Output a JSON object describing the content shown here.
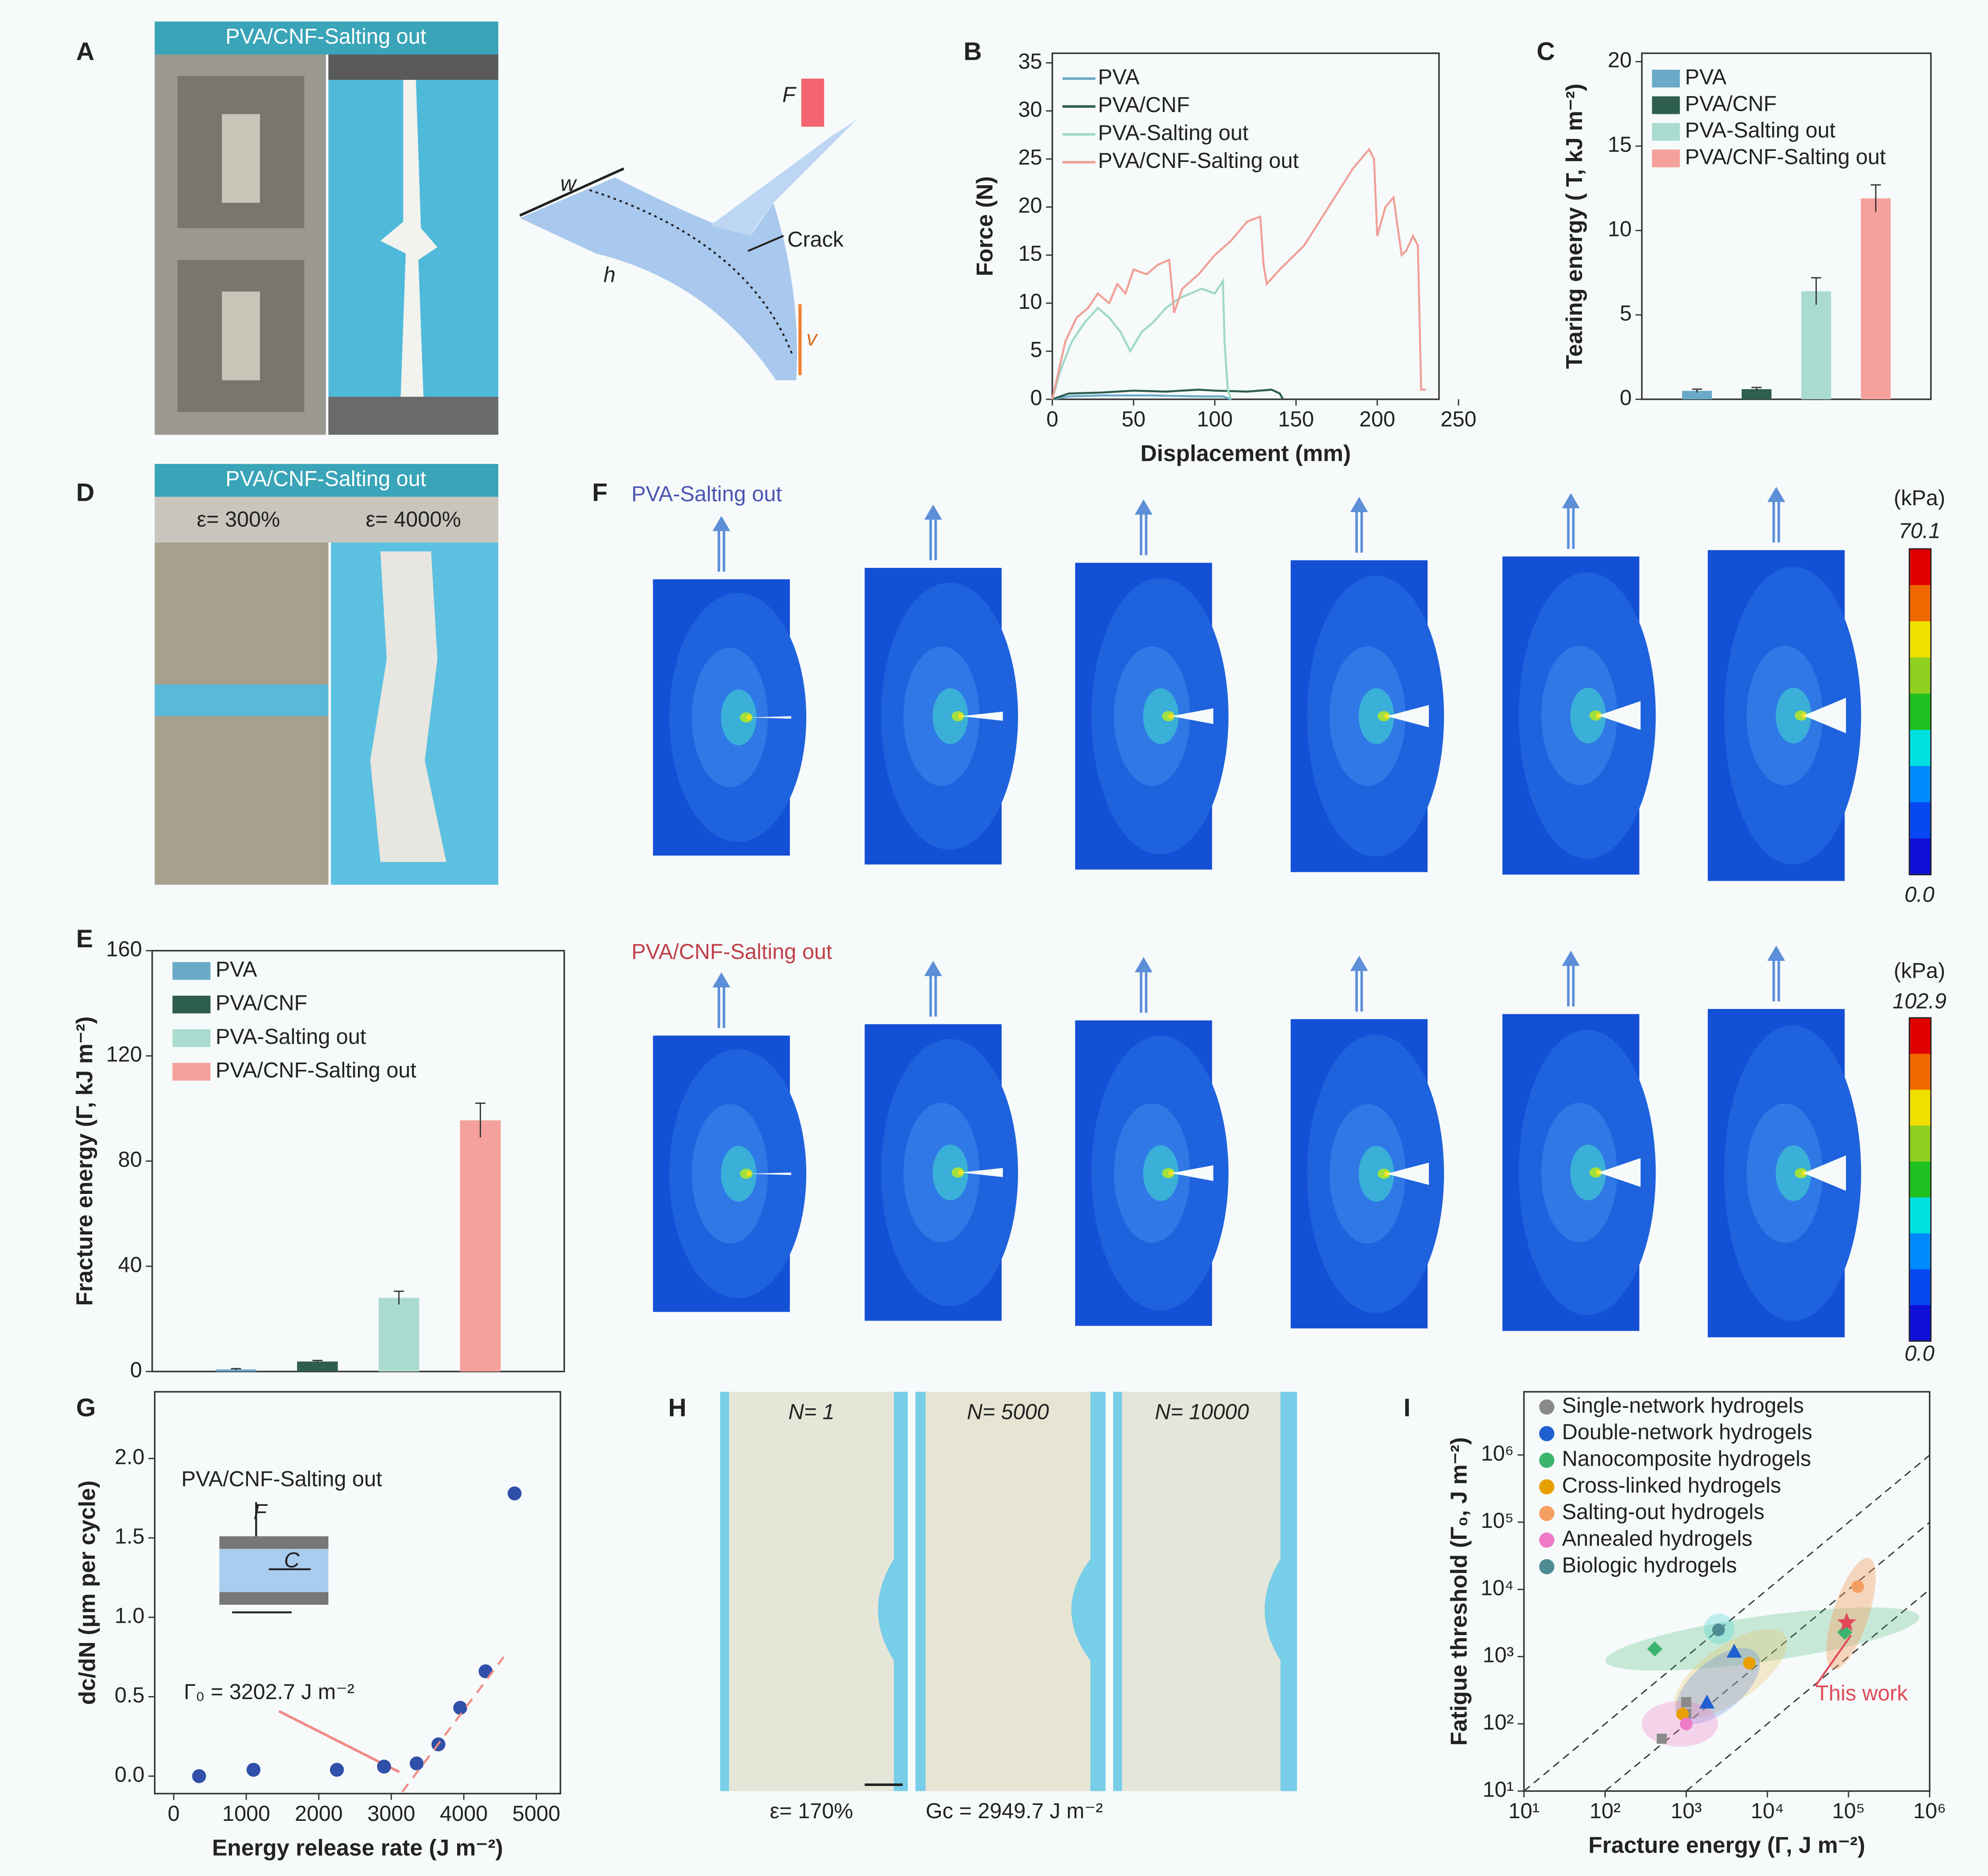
{
  "panels": {
    "A": {
      "label": "A",
      "title": "PVA/CNF-Salting out",
      "annotations": [
        "w",
        "h",
        "F",
        "Crack",
        "v"
      ]
    },
    "D": {
      "label": "D",
      "title": "PVA/CNF-Salting out",
      "captions": [
        "ε= 300%",
        "ε= 4000%"
      ]
    },
    "F": {
      "label": "F",
      "rows": [
        {
          "title": "PVA-Salting out",
          "unit": "(kPa)",
          "max": "70.1",
          "min": "0.0"
        },
        {
          "title": "PVA/CNF-Salting out",
          "unit": "(kPa)",
          "max": "102.9",
          "min": "0.0"
        }
      ]
    },
    "H": {
      "label": "H",
      "captions": [
        "N= 1",
        "N= 5000",
        "N= 10000"
      ],
      "notes": [
        "ε= 170%",
        "Gc = 2949.7 J m⁻²"
      ]
    }
  },
  "chart_data": [
    {
      "type": "line",
      "panel": "B",
      "xlabel": "Displacement (mm)",
      "ylabel": "Force (N)",
      "xlim": [
        0,
        238
      ],
      "ylim": [
        0,
        36
      ],
      "xticks": [
        0,
        50,
        100,
        150,
        200,
        250
      ],
      "yticks": [
        0,
        5,
        10,
        15,
        20,
        25,
        30,
        35
      ],
      "legend": "upper left",
      "series": [
        {
          "name": "PVA",
          "color": "#6aaac8",
          "x": [
            0,
            10,
            30,
            60,
            90,
            105,
            110
          ],
          "y": [
            0,
            0.3,
            0.4,
            0.4,
            0.3,
            0.3,
            0
          ]
        },
        {
          "name": "PVA/CNF",
          "color": "#2e5e4e",
          "x": [
            0,
            10,
            30,
            50,
            70,
            90,
            100,
            120,
            135,
            140,
            142
          ],
          "y": [
            0,
            0.6,
            0.7,
            0.9,
            0.8,
            1.0,
            0.9,
            0.8,
            1.0,
            0.6,
            0
          ]
        },
        {
          "name": "PVA-Salting out",
          "color": "#9fd8c8",
          "x": [
            0,
            5,
            12,
            20,
            28,
            35,
            42,
            48,
            55,
            62,
            70,
            78,
            85,
            92,
            100,
            105,
            106,
            108,
            110
          ],
          "y": [
            0,
            3,
            6,
            8,
            9.5,
            8.5,
            7,
            5,
            7,
            8,
            9.5,
            10.5,
            11,
            11.5,
            11,
            12.3,
            6,
            1,
            0
          ]
        },
        {
          "name": "PVA/CNF-Salting out",
          "color": "#f0a098",
          "x": [
            0,
            8,
            15,
            22,
            28,
            35,
            40,
            45,
            50,
            58,
            65,
            72,
            75,
            80,
            90,
            100,
            110,
            120,
            128,
            130,
            132,
            140,
            155,
            170,
            185,
            195,
            198,
            200,
            205,
            210,
            215,
            218,
            222,
            225,
            227,
            228,
            230
          ],
          "y": [
            0,
            6,
            8.5,
            9.5,
            11,
            10,
            12,
            11,
            13.5,
            13,
            14,
            14.5,
            9,
            11.5,
            13,
            15,
            16.5,
            18.5,
            19,
            14,
            12,
            13.5,
            16,
            20,
            24,
            26,
            25,
            17,
            20,
            21,
            15,
            15.5,
            17,
            16,
            1,
            1,
            1
          ]
        }
      ]
    },
    {
      "type": "bar",
      "panel": "C",
      "ylabel": "Tearing energy ( T, kJ m⁻²)",
      "ylim": [
        0,
        20.5
      ],
      "yticks": [
        0,
        5,
        10,
        15,
        20
      ],
      "legend": "upper left",
      "series": [
        {
          "name": "PVA",
          "color": "#6aaac8",
          "values": [
            0.5
          ],
          "errors": [
            0.1
          ]
        },
        {
          "name": "PVA/CNF",
          "color": "#2e5e4e",
          "values": [
            0.6
          ],
          "errors": [
            0.1
          ]
        },
        {
          "name": "PVA-Salting out",
          "color": "#a9dccf",
          "values": [
            6.4
          ],
          "errors": [
            0.8
          ]
        },
        {
          "name": "PVA/CNF-Salting out",
          "color": "#f4a09c",
          "values": [
            11.9
          ],
          "errors": [
            0.8
          ]
        }
      ]
    },
    {
      "type": "bar",
      "panel": "E",
      "ylabel": "Fracture energy (Γ, kJ m⁻²)",
      "ylim": [
        0,
        160
      ],
      "yticks": [
        0,
        40,
        80,
        120,
        160
      ],
      "legend": "upper left",
      "series": [
        {
          "name": "PVA",
          "color": "#6aaac8",
          "values": [
            0.8
          ],
          "errors": [
            0.3
          ]
        },
        {
          "name": "PVA/CNF",
          "color": "#2e5e4e",
          "values": [
            3.8
          ],
          "errors": [
            0.4
          ]
        },
        {
          "name": "PVA-Salting out",
          "color": "#a9dccf",
          "values": [
            28
          ],
          "errors": [
            2.5
          ]
        },
        {
          "name": "PVA/CNF-Salting out",
          "color": "#f4a09c",
          "values": [
            95.5
          ],
          "errors": [
            6.5
          ]
        }
      ]
    },
    {
      "type": "scatter",
      "panel": "G",
      "xlabel": "Energy release rate (J m⁻²)",
      "ylabel": "dc/dN (μm per cycle)",
      "xlim": [
        -262,
        5332
      ],
      "ylim": [
        -0.11,
        2.42
      ],
      "xticks": [
        0,
        1000,
        2000,
        3000,
        4000,
        5000
      ],
      "yticks": [
        {
          "value": 0,
          "label": "0.0"
        },
        0.5,
        {
          "value": 1,
          "label": "1.0"
        },
        1.5,
        {
          "value": 2,
          "label": "2.0"
        }
      ],
      "color": "#2f4fa8",
      "x": [
        350,
        1100,
        2250,
        2900,
        3350,
        3650,
        3950,
        4300,
        4700
      ],
      "y": [
        0,
        0.04,
        0.04,
        0.06,
        0.08,
        0.2,
        0.43,
        0.66,
        1.78
      ],
      "fit": {
        "color": "#f08a80",
        "x": [
          3150,
          4550
        ],
        "y": [
          -0.1,
          0.75
        ]
      },
      "annotations": [
        "PVA/CNF-Salting out",
        "Γ₀ = 3202.7 J m⁻²",
        "F",
        "C"
      ]
    },
    {
      "type": "scatter",
      "panel": "I",
      "xscale": "log",
      "yscale": "log",
      "xlabel": "Fracture energy (Γ, J m⁻²)",
      "ylabel": "Fatigue threshold (Γ₀, J m⁻²)",
      "xlim": [
        10,
        1000000
      ],
      "ylim": [
        10,
        8700000
      ],
      "xticks": [
        {
          "value": 10,
          "label": "10¹"
        },
        {
          "value": 100,
          "label": "10²"
        },
        {
          "value": 1000,
          "label": "10³"
        },
        {
          "value": 10000,
          "label": "10⁴"
        },
        {
          "value": 100000,
          "label": "10⁵"
        },
        {
          "value": 1000000,
          "label": "10⁶"
        }
      ],
      "yticks": [
        {
          "value": 10,
          "label": "10¹"
        },
        {
          "value": 100,
          "label": "10²"
        },
        {
          "value": 1000,
          "label": "10³"
        },
        {
          "value": 10000,
          "label": "10⁴"
        },
        {
          "value": 100000,
          "label": "10⁵"
        },
        {
          "value": 1000000,
          "label": "10⁶"
        }
      ],
      "legend": "upper left",
      "series": [
        {
          "name": "Single-network hydrogels",
          "color": "#8a8a8a",
          "marker": "square",
          "x": [
            500,
            1000,
            1000
          ],
          "y": [
            60,
            140,
            210
          ]
        },
        {
          "name": "Double-network hydrogels",
          "color": "#1f5fd0",
          "marker": "triangle",
          "x": [
            1800,
            3900
          ],
          "y": [
            210,
            1200
          ]
        },
        {
          "name": "Nanocomposite hydrogels",
          "color": "#3cb46e",
          "marker": "diamond",
          "x": [
            410,
            90000
          ],
          "y": [
            1300,
            2300
          ]
        },
        {
          "name": "Cross-linked hydrogels",
          "color": "#e8a000",
          "marker": "circle",
          "x": [
            900,
            6000
          ],
          "y": [
            140,
            800
          ]
        },
        {
          "name": "Salting-out hydrogels",
          "color": "#f5a062",
          "marker": "circle",
          "x": [
            130000
          ],
          "y": [
            11000
          ]
        },
        {
          "name": "Annealed hydrogels",
          "color": "#ee7ac8",
          "marker": "circle",
          "x": [
            1000
          ],
          "y": [
            100
          ]
        },
        {
          "name": "Biologic hydrogels",
          "color": "#4c8c92",
          "marker": "circle",
          "x": [
            2500
          ],
          "y": [
            2500
          ]
        }
      ],
      "highlight": {
        "label": "This work",
        "color": "#e04a58",
        "x": 95000,
        "y": 3200
      }
    }
  ]
}
